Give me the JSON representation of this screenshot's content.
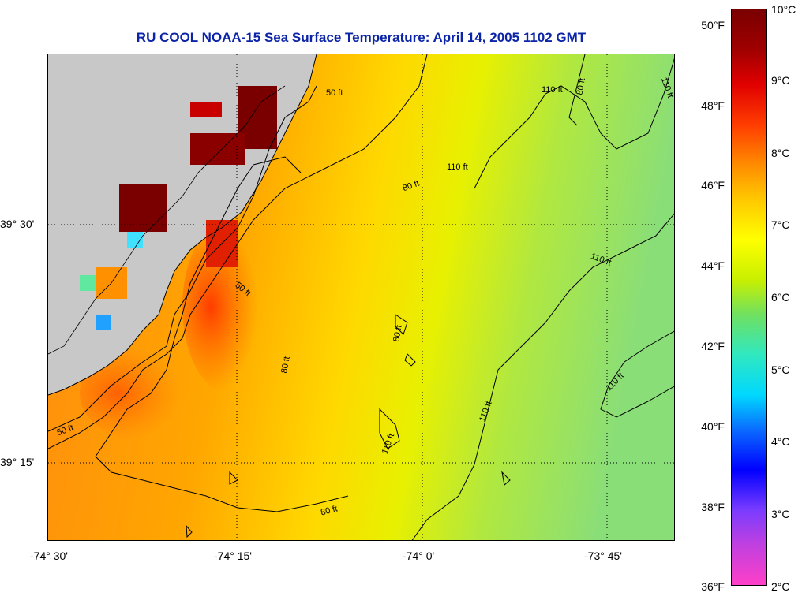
{
  "title": "RU COOL  NOAA-15  Sea Surface Temperature:  April 14, 2005 1102 GMT",
  "lat_labels": [
    "39° 30'",
    "39° 15'"
  ],
  "lon_labels": [
    "-74° 30'",
    "-74° 15'",
    "-74° 0'",
    "-73° 45'"
  ],
  "colorbar": {
    "fahrenheit_labels": [
      "50°F",
      "48°F",
      "46°F",
      "44°F",
      "42°F",
      "40°F",
      "38°F",
      "36°F"
    ],
    "celsius_labels": [
      "10°C",
      "9°C",
      "8°C",
      "7°C",
      "6°C",
      "5°C",
      "4°C",
      "3°C",
      "2°C"
    ]
  },
  "contour_labels": [
    "50 ft",
    "80 ft",
    "110 ft"
  ],
  "colors": {
    "title": "#0b24a8",
    "land": "#c8c8c8",
    "warm": "#ff8c00",
    "cool": "#98e070"
  }
}
